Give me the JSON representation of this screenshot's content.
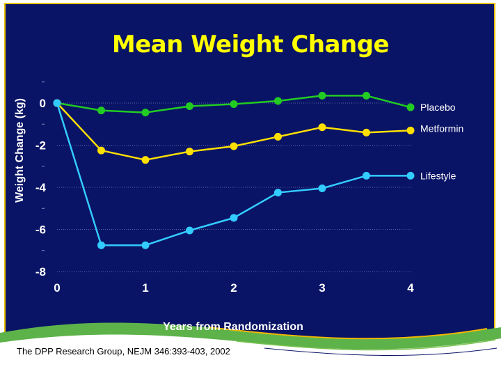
{
  "chart_data": {
    "type": "line",
    "title": "Mean Weight Change",
    "xlabel": "Years from Randomization",
    "ylabel": "Weight Change (kg)",
    "xlim": [
      0,
      4
    ],
    "ylim": [
      -8,
      0
    ],
    "x": [
      0,
      0.5,
      1,
      1.5,
      2,
      2.5,
      3,
      3.5,
      4
    ],
    "x_ticks": [
      "0",
      "1",
      "2",
      "3",
      "4"
    ],
    "y_ticks": [
      "0",
      "-2",
      "-4",
      "-6",
      "-8"
    ],
    "series": [
      {
        "name": "Placebo",
        "color": "#22cc22",
        "values": [
          0,
          -0.35,
          -0.45,
          -0.15,
          -0.05,
          0.1,
          0.35,
          0.35,
          -0.2
        ]
      },
      {
        "name": "Metformin",
        "color": "#ffe000",
        "values": [
          0,
          -2.25,
          -2.7,
          -2.3,
          -2.05,
          -1.6,
          -1.15,
          -1.4,
          -1.3
        ]
      },
      {
        "name": "Lifestyle",
        "color": "#33ccff",
        "values": [
          0,
          -6.75,
          -6.75,
          -6.05,
          -5.45,
          -4.25,
          -4.05,
          -3.45,
          -3.45
        ]
      }
    ]
  },
  "citation": "The DPP Research Group, NEJM 346:393-403, 2002"
}
